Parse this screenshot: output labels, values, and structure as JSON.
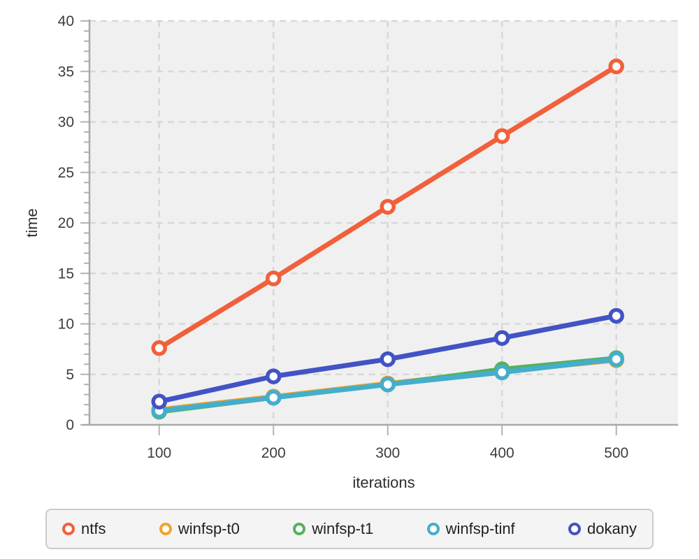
{
  "chart_data": {
    "type": "line",
    "title": "",
    "xlabel": "iterations",
    "ylabel": "time",
    "x": [
      100,
      200,
      300,
      400,
      500
    ],
    "x_tick_labels": [
      "100",
      "200",
      "300",
      "400",
      "500"
    ],
    "y_major_ticks": [
      0,
      5,
      10,
      15,
      20,
      25,
      30,
      35,
      40
    ],
    "y_tick_labels": [
      "0",
      "5",
      "10",
      "15",
      "20",
      "25",
      "30",
      "35",
      "40"
    ],
    "y_minor_tick_step": 1,
    "xlim": [
      39,
      554
    ],
    "ylim": [
      0,
      40
    ],
    "grid": true,
    "grid_style": "dashed",
    "legend_position": "bottom",
    "series": [
      {
        "name": "ntfs",
        "color": "#f1603b",
        "values": [
          7.6,
          14.5,
          21.6,
          28.6,
          35.5
        ]
      },
      {
        "name": "winfsp-t0",
        "color": "#f0a42d",
        "values": [
          1.5,
          2.8,
          4.1,
          5.3,
          6.4
        ]
      },
      {
        "name": "winfsp-t1",
        "color": "#55b15f",
        "values": [
          1.3,
          2.7,
          4.0,
          5.5,
          6.6
        ]
      },
      {
        "name": "winfsp-tinf",
        "color": "#43aecd",
        "values": [
          1.4,
          2.7,
          4.0,
          5.2,
          6.5
        ]
      },
      {
        "name": "dokany",
        "color": "#4253c5",
        "values": [
          2.3,
          4.8,
          6.5,
          8.6,
          10.8
        ]
      }
    ]
  },
  "styles": {
    "plot_bg": "#f0f0f0",
    "gridline": "#d8d8d8",
    "axis_line": "#a9a9a9",
    "tick_mark": "#b3b3b3",
    "tick_text": "#3d3d3d",
    "marker_fill": "#ffffff"
  }
}
